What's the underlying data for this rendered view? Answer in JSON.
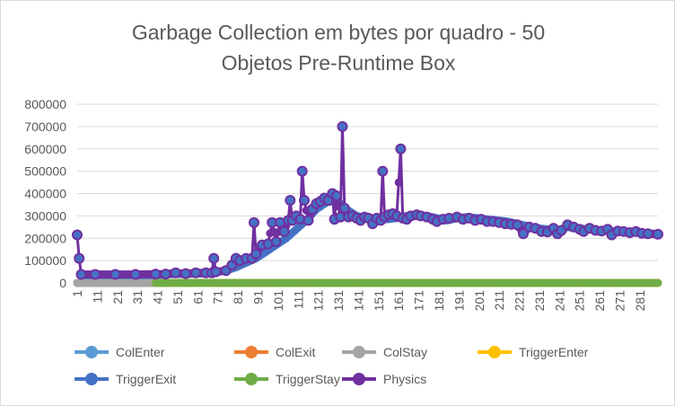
{
  "chart_data": {
    "type": "line",
    "title_lines": [
      "Garbage Collection em bytes por quadro - 50",
      "Objetos Pre-Runtime Box"
    ],
    "xlabel": "",
    "ylabel": "",
    "x_range": [
      1,
      290
    ],
    "ylim": [
      0,
      800000
    ],
    "y_ticks": [
      "800000",
      "700000",
      "600000",
      "500000",
      "400000",
      "300000",
      "200000",
      "100000",
      "0"
    ],
    "y_tick_values": [
      800000,
      700000,
      600000,
      500000,
      400000,
      300000,
      200000,
      100000,
      0
    ],
    "x_ticks": [
      1,
      11,
      21,
      31,
      41,
      51,
      61,
      71,
      81,
      91,
      101,
      111,
      121,
      131,
      141,
      151,
      161,
      171,
      181,
      191,
      201,
      211,
      221,
      231,
      241,
      251,
      261,
      271,
      281
    ],
    "grid": "horizontal",
    "legend_position": "bottom",
    "series": [
      {
        "name": "ColEnter",
        "color": "#5b9bd5",
        "values": [
          [
            1,
            0
          ],
          [
            290,
            0
          ]
        ]
      },
      {
        "name": "ColExit",
        "color": "#ed7d31",
        "values": [
          [
            1,
            0
          ],
          [
            290,
            0
          ]
        ]
      },
      {
        "name": "ColStay",
        "color": "#a5a5a5",
        "values": [
          [
            1,
            0
          ],
          [
            40,
            0
          ]
        ]
      },
      {
        "name": "TriggerEnter",
        "color": "#ffc000",
        "values": [
          [
            40,
            0
          ],
          [
            290,
            0
          ]
        ]
      },
      {
        "name": "TriggerExit",
        "color": "#4472c4",
        "values": [
          [
            3,
            35000
          ],
          [
            40,
            35000
          ],
          [
            45,
            38000
          ],
          [
            50,
            40000
          ],
          [
            55,
            40000
          ],
          [
            60,
            42000
          ],
          [
            65,
            42000
          ],
          [
            70,
            48000
          ],
          [
            75,
            55000
          ],
          [
            80,
            70000
          ],
          [
            85,
            90000
          ],
          [
            90,
            110000
          ],
          [
            95,
            140000
          ],
          [
            100,
            170000
          ],
          [
            105,
            200000
          ],
          [
            110,
            240000
          ],
          [
            115,
            280000
          ],
          [
            120,
            330000
          ],
          [
            125,
            360000
          ],
          [
            130,
            370000
          ],
          [
            135,
            330000
          ],
          [
            140,
            300000
          ],
          [
            145,
            290000
          ],
          [
            150,
            285000
          ],
          [
            155,
            285000
          ],
          [
            160,
            290000
          ],
          [
            165,
            300000
          ],
          [
            170,
            300000
          ],
          [
            175,
            300000
          ],
          [
            180,
            290000
          ],
          [
            185,
            280000
          ],
          [
            190,
            290000
          ],
          [
            195,
            295000
          ],
          [
            200,
            290000
          ],
          [
            205,
            285000
          ],
          [
            210,
            280000
          ],
          [
            215,
            275000
          ],
          [
            220,
            265000
          ],
          [
            225,
            255000
          ],
          [
            230,
            245000
          ],
          [
            235,
            240000
          ],
          [
            240,
            235000
          ],
          [
            245,
            250000
          ],
          [
            250,
            245000
          ],
          [
            255,
            240000
          ],
          [
            260,
            235000
          ],
          [
            265,
            232000
          ],
          [
            270,
            230000
          ],
          [
            275,
            228000
          ],
          [
            280,
            225000
          ],
          [
            285,
            222000
          ],
          [
            290,
            220000
          ]
        ]
      },
      {
        "name": "TriggerStay",
        "color": "#70ad47",
        "values": [
          [
            40,
            0
          ],
          [
            290,
            0
          ]
        ]
      },
      {
        "name": "Physics",
        "color": "#7030a0",
        "values": [
          [
            1,
            215000
          ],
          [
            2,
            110000
          ],
          [
            3,
            38000
          ],
          [
            10,
            38000
          ],
          [
            20,
            38000
          ],
          [
            30,
            38000
          ],
          [
            40,
            40000
          ],
          [
            45,
            40000
          ],
          [
            50,
            45000
          ],
          [
            55,
            42000
          ],
          [
            60,
            45000
          ],
          [
            65,
            45000
          ],
          [
            68,
            45000
          ],
          [
            69,
            110000
          ],
          [
            70,
            50000
          ],
          [
            75,
            55000
          ],
          [
            78,
            80000
          ],
          [
            80,
            110000
          ],
          [
            82,
            100000
          ],
          [
            85,
            110000
          ],
          [
            88,
            110000
          ],
          [
            89,
            270000
          ],
          [
            90,
            130000
          ],
          [
            93,
            170000
          ],
          [
            96,
            175000
          ],
          [
            98,
            270000
          ],
          [
            100,
            185000
          ],
          [
            102,
            270000
          ],
          [
            104,
            230000
          ],
          [
            106,
            280000
          ],
          [
            107,
            370000
          ],
          [
            108,
            280000
          ],
          [
            110,
            300000
          ],
          [
            112,
            285000
          ],
          [
            113,
            500000
          ],
          [
            114,
            370000
          ],
          [
            116,
            280000
          ],
          [
            118,
            330000
          ],
          [
            120,
            355000
          ],
          [
            122,
            365000
          ],
          [
            124,
            380000
          ],
          [
            126,
            370000
          ],
          [
            128,
            400000
          ],
          [
            129,
            285000
          ],
          [
            130,
            390000
          ],
          [
            132,
            295000
          ],
          [
            133,
            700000
          ],
          [
            134,
            335000
          ],
          [
            136,
            295000
          ],
          [
            138,
            300000
          ],
          [
            140,
            290000
          ],
          [
            142,
            280000
          ],
          [
            144,
            295000
          ],
          [
            146,
            290000
          ],
          [
            148,
            265000
          ],
          [
            150,
            290000
          ],
          [
            152,
            280000
          ],
          [
            153,
            500000
          ],
          [
            154,
            295000
          ],
          [
            156,
            305000
          ],
          [
            158,
            310000
          ],
          [
            160,
            300000
          ],
          [
            162,
            600000
          ],
          [
            163,
            290000
          ],
          [
            165,
            285000
          ],
          [
            167,
            300000
          ],
          [
            170,
            305000
          ],
          [
            172,
            300000
          ],
          [
            175,
            295000
          ],
          [
            178,
            285000
          ],
          [
            180,
            275000
          ],
          [
            183,
            285000
          ],
          [
            186,
            290000
          ],
          [
            190,
            295000
          ],
          [
            193,
            285000
          ],
          [
            196,
            290000
          ],
          [
            199,
            280000
          ],
          [
            202,
            285000
          ],
          [
            205,
            275000
          ],
          [
            208,
            275000
          ],
          [
            211,
            270000
          ],
          [
            214,
            265000
          ],
          [
            217,
            262000
          ],
          [
            220,
            260000
          ],
          [
            223,
            220000
          ],
          [
            226,
            250000
          ],
          [
            229,
            245000
          ],
          [
            232,
            230000
          ],
          [
            235,
            228000
          ],
          [
            238,
            245000
          ],
          [
            240,
            220000
          ],
          [
            242,
            235000
          ],
          [
            245,
            260000
          ],
          [
            248,
            250000
          ],
          [
            251,
            240000
          ],
          [
            253,
            230000
          ],
          [
            256,
            245000
          ],
          [
            259,
            235000
          ],
          [
            262,
            232000
          ],
          [
            265,
            240000
          ],
          [
            267,
            215000
          ],
          [
            270,
            232000
          ],
          [
            273,
            230000
          ],
          [
            276,
            225000
          ],
          [
            279,
            230000
          ],
          [
            282,
            222000
          ],
          [
            285,
            220000
          ],
          [
            290,
            218000
          ]
        ]
      }
    ]
  }
}
